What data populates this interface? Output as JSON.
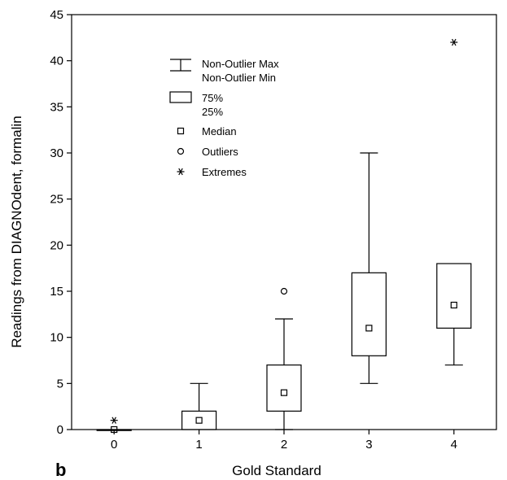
{
  "chart_data": {
    "type": "box",
    "title": "",
    "panel_label": "b",
    "xlabel": "Gold Standard",
    "ylabel": "Readings from DIAGNOdent, formalin",
    "xlim": [
      -0.5,
      4.5
    ],
    "ylim": [
      0,
      45
    ],
    "x_ticks": [
      0,
      1,
      2,
      3,
      4
    ],
    "y_ticks": [
      0,
      5,
      10,
      15,
      20,
      25,
      30,
      35,
      40,
      45
    ],
    "grid": false,
    "legend_position": "upper-left-inside",
    "legend": {
      "whisker": [
        "Non-Outlier Max",
        "Non-Outlier Min"
      ],
      "box": [
        "75%",
        "25%"
      ],
      "median": "Median",
      "outliers": "Outliers",
      "extremes": "Extremes"
    },
    "boxes": [
      {
        "category": "0",
        "median": 0,
        "q1": 0,
        "q3": 0,
        "whisker_min": 0,
        "whisker_max": 0,
        "outliers": [],
        "extremes": [
          1
        ]
      },
      {
        "category": "1",
        "median": 1,
        "q1": 0,
        "q3": 2,
        "whisker_min": 0,
        "whisker_max": 5,
        "outliers": [],
        "extremes": []
      },
      {
        "category": "2",
        "median": 4,
        "q1": 2,
        "q3": 7,
        "whisker_min": 0,
        "whisker_max": 12,
        "outliers": [
          15
        ],
        "extremes": []
      },
      {
        "category": "3",
        "median": 11,
        "q1": 8,
        "q3": 17,
        "whisker_min": 5,
        "whisker_max": 30,
        "outliers": [],
        "extremes": []
      },
      {
        "category": "4",
        "median": 13.5,
        "q1": 11,
        "q3": 18,
        "whisker_min": 7,
        "whisker_max": 18,
        "outliers": [],
        "extremes": [
          42
        ]
      }
    ]
  }
}
